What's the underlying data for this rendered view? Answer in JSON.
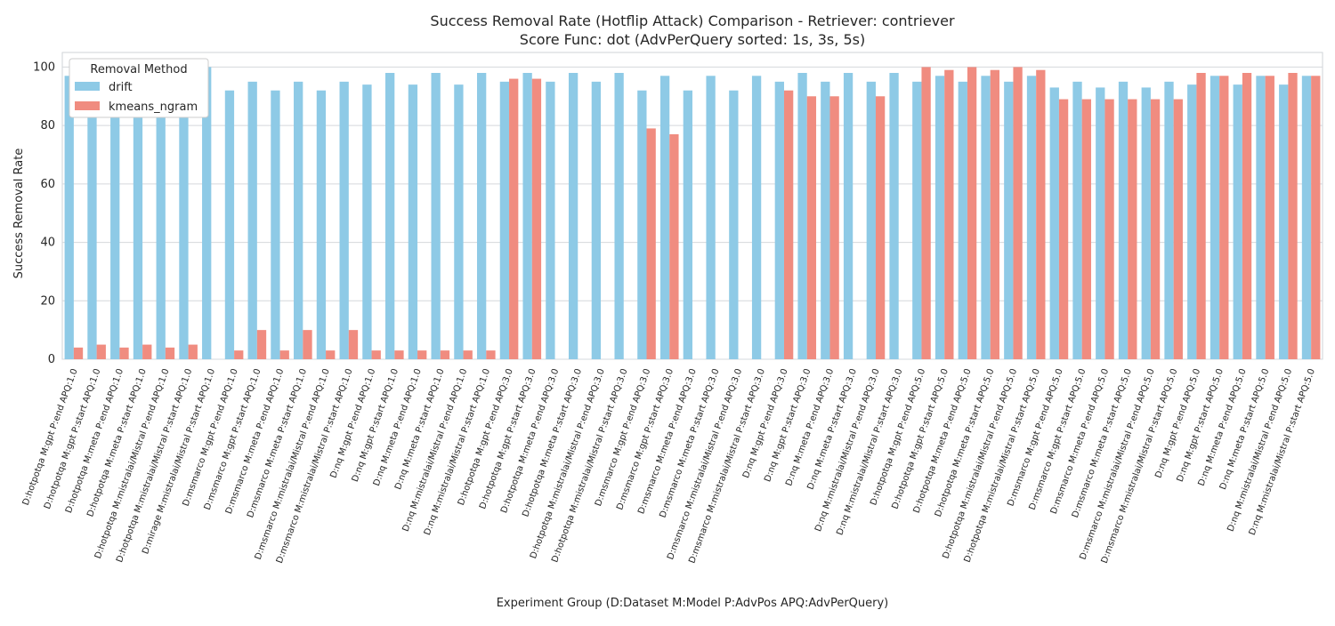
{
  "chart_data": {
    "type": "bar",
    "title_line1": "Success Removal Rate (Hotflip Attack) Comparison - Retriever: contriever",
    "title_line2": "Score Func: dot (AdvPerQuery sorted: 1s, 3s, 5s)",
    "xlabel": "Experiment Group (D:Dataset M:Model P:AdvPos APQ:AdvPerQuery)",
    "ylabel": "Success Removal Rate",
    "ylim": [
      0,
      105
    ],
    "yticks": [
      0,
      20,
      40,
      60,
      80,
      100
    ],
    "grid": true,
    "legend": {
      "title": "Removal Method",
      "placement": "top-left"
    },
    "colors": {
      "drift": "#8ecae6",
      "kmeans_ngram": "#f08c80"
    },
    "categories": [
      "D:hotpotqa M:gpt P:end APQ:1.0",
      "D:hotpotqa M:gpt P:start APQ:1.0",
      "D:hotpotqa M:meta P:end APQ:1.0",
      "D:hotpotqa M:meta P:start APQ:1.0",
      "D:hotpotqa M:mistralai/Mistral P:end APQ:1.0",
      "D:hotpotqa M:mistralai/Mistral P:start APQ:1.0",
      "D:mirage M:mistralai/Mistral P:start APQ:1.0",
      "D:msmarco M:gpt P:end APQ:1.0",
      "D:msmarco M:gpt P:start APQ:1.0",
      "D:msmarco M:meta P:end APQ:1.0",
      "D:msmarco M:meta P:start APQ:1.0",
      "D:msmarco M:mistralai/Mistral P:end APQ:1.0",
      "D:msmarco M:mistralai/Mistral P:start APQ:1.0",
      "D:nq M:gpt P:end APQ:1.0",
      "D:nq M:gpt P:start APQ:1.0",
      "D:nq M:meta P:end APQ:1.0",
      "D:nq M:meta P:start APQ:1.0",
      "D:nq M:mistralai/Mistral P:end APQ:1.0",
      "D:nq M:mistralai/Mistral P:start APQ:1.0",
      "D:hotpotqa M:gpt P:end APQ:3.0",
      "D:hotpotqa M:gpt P:start APQ:3.0",
      "D:hotpotqa M:meta P:end APQ:3.0",
      "D:hotpotqa M:meta P:start APQ:3.0",
      "D:hotpotqa M:mistralai/Mistral P:end APQ:3.0",
      "D:hotpotqa M:mistralai/Mistral P:start APQ:3.0",
      "D:msmarco M:gpt P:end APQ:3.0",
      "D:msmarco M:gpt P:start APQ:3.0",
      "D:msmarco M:meta P:end APQ:3.0",
      "D:msmarco M:meta P:start APQ:3.0",
      "D:msmarco M:mistralai/Mistral P:end APQ:3.0",
      "D:msmarco M:mistralai/Mistral P:start APQ:3.0",
      "D:nq M:gpt P:end APQ:3.0",
      "D:nq M:gpt P:start APQ:3.0",
      "D:nq M:meta P:end APQ:3.0",
      "D:nq M:meta P:start APQ:3.0",
      "D:nq M:mistralai/Mistral P:end APQ:3.0",
      "D:nq M:mistralai/Mistral P:start APQ:3.0",
      "D:hotpotqa M:gpt P:end APQ:5.0",
      "D:hotpotqa M:gpt P:start APQ:5.0",
      "D:hotpotqa M:meta P:end APQ:5.0",
      "D:hotpotqa M:meta P:start APQ:5.0",
      "D:hotpotqa M:mistralai/Mistral P:end APQ:5.0",
      "D:hotpotqa M:mistralai/Mistral P:start APQ:5.0",
      "D:msmarco M:gpt P:end APQ:5.0",
      "D:msmarco M:gpt P:start APQ:5.0",
      "D:msmarco M:meta P:end APQ:5.0",
      "D:msmarco M:meta P:start APQ:5.0",
      "D:msmarco M:mistralai/Mistral P:end APQ:5.0",
      "D:msmarco M:mistralai/Mistral P:start APQ:5.0",
      "D:nq M:gpt P:end APQ:5.0",
      "D:nq M:gpt P:start APQ:5.0",
      "D:nq M:meta P:end APQ:5.0",
      "D:nq M:meta P:start APQ:5.0",
      "D:nq M:mistralai/Mistral P:end APQ:5.0",
      "D:nq M:mistralai/Mistral P:start APQ:5.0"
    ],
    "series": [
      {
        "name": "drift",
        "values": [
          97,
          97,
          97,
          97,
          97,
          97,
          100,
          92,
          95,
          92,
          95,
          92,
          95,
          94,
          98,
          94,
          98,
          94,
          98,
          95,
          98,
          95,
          98,
          95,
          98,
          92,
          97,
          92,
          97,
          92,
          97,
          95,
          98,
          95,
          98,
          95,
          98,
          95,
          97,
          95,
          97,
          95,
          97,
          93,
          95,
          93,
          95,
          93,
          95,
          94,
          97,
          94,
          97,
          94,
          97
        ]
      },
      {
        "name": "kmeans_ngram",
        "values": [
          4,
          5,
          4,
          5,
          4,
          5,
          0,
          3,
          10,
          3,
          10,
          3,
          10,
          3,
          3,
          3,
          3,
          3,
          3,
          96,
          96,
          0,
          0,
          0,
          0,
          79,
          77,
          0,
          0,
          0,
          0,
          92,
          90,
          90,
          0,
          90,
          0,
          100,
          99,
          100,
          99,
          100,
          99,
          89,
          89,
          89,
          89,
          89,
          89,
          98,
          97,
          98,
          97,
          98,
          97
        ]
      }
    ]
  }
}
